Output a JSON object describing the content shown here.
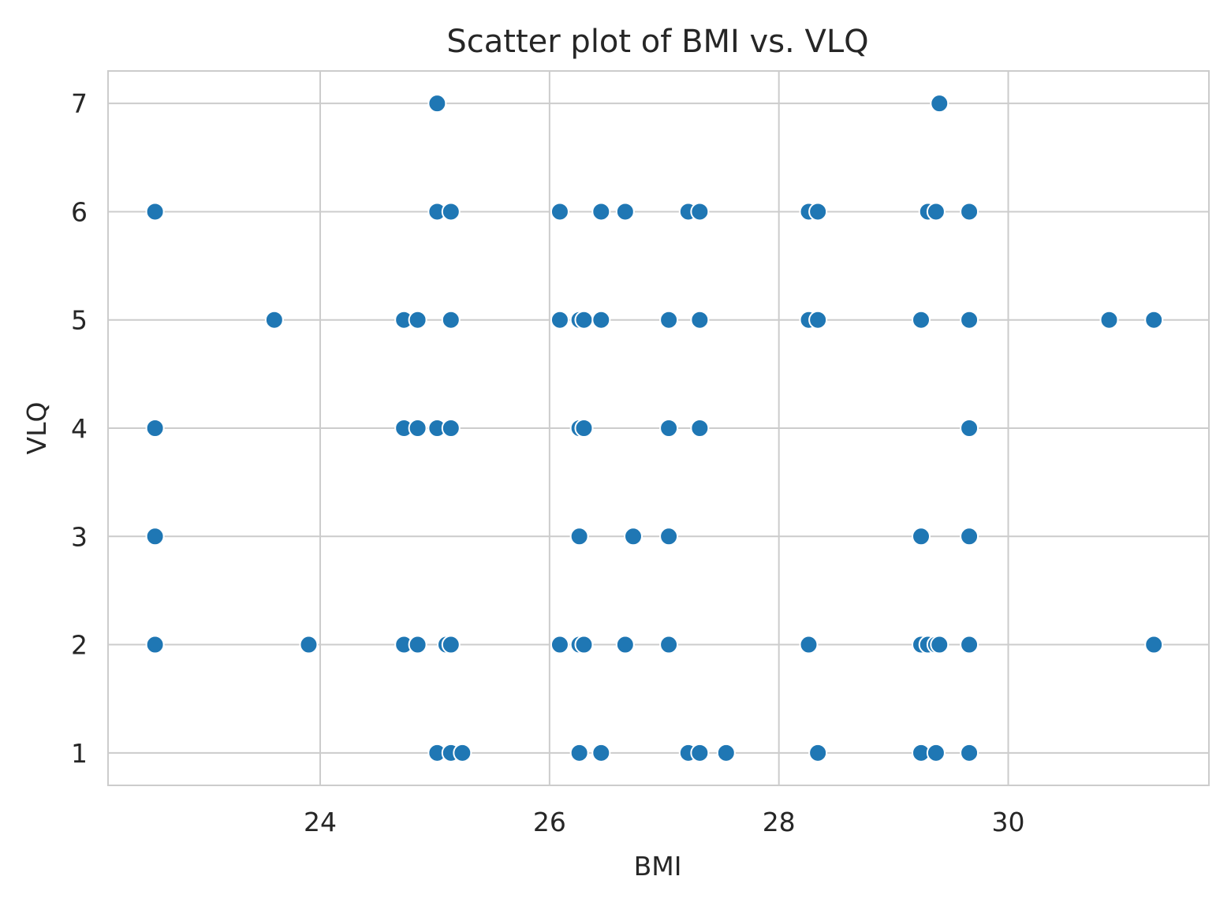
{
  "chart_data": {
    "type": "scatter",
    "title": "Scatter plot of BMI vs. VLQ",
    "xlabel": "BMI",
    "ylabel": "VLQ",
    "xlim": [
      22.15,
      31.75
    ],
    "ylim": [
      0.7,
      7.3
    ],
    "xticks": [
      24,
      26,
      28,
      30
    ],
    "yticks": [
      1,
      2,
      3,
      4,
      5,
      6,
      7
    ],
    "grid": true,
    "marker_color": "#1f77b4",
    "points": [
      {
        "x": 22.56,
        "y": 6
      },
      {
        "x": 22.56,
        "y": 4
      },
      {
        "x": 22.56,
        "y": 3
      },
      {
        "x": 22.56,
        "y": 2
      },
      {
        "x": 23.6,
        "y": 5
      },
      {
        "x": 23.9,
        "y": 2
      },
      {
        "x": 24.73,
        "y": 5
      },
      {
        "x": 24.73,
        "y": 4
      },
      {
        "x": 24.73,
        "y": 2
      },
      {
        "x": 24.85,
        "y": 5
      },
      {
        "x": 24.85,
        "y": 4
      },
      {
        "x": 24.85,
        "y": 2
      },
      {
        "x": 25.02,
        "y": 7
      },
      {
        "x": 25.02,
        "y": 6
      },
      {
        "x": 25.02,
        "y": 4
      },
      {
        "x": 25.02,
        "y": 1
      },
      {
        "x": 25.1,
        "y": 2
      },
      {
        "x": 25.14,
        "y": 6
      },
      {
        "x": 25.14,
        "y": 5
      },
      {
        "x": 25.14,
        "y": 4
      },
      {
        "x": 25.14,
        "y": 2
      },
      {
        "x": 25.14,
        "y": 1
      },
      {
        "x": 25.24,
        "y": 1
      },
      {
        "x": 26.09,
        "y": 6
      },
      {
        "x": 26.09,
        "y": 5
      },
      {
        "x": 26.09,
        "y": 2
      },
      {
        "x": 26.26,
        "y": 5
      },
      {
        "x": 26.26,
        "y": 4
      },
      {
        "x": 26.26,
        "y": 3
      },
      {
        "x": 26.26,
        "y": 2
      },
      {
        "x": 26.26,
        "y": 1
      },
      {
        "x": 26.3,
        "y": 5
      },
      {
        "x": 26.3,
        "y": 4
      },
      {
        "x": 26.3,
        "y": 2
      },
      {
        "x": 26.45,
        "y": 6
      },
      {
        "x": 26.45,
        "y": 5
      },
      {
        "x": 26.45,
        "y": 1
      },
      {
        "x": 26.66,
        "y": 6
      },
      {
        "x": 26.66,
        "y": 2
      },
      {
        "x": 26.73,
        "y": 3
      },
      {
        "x": 27.04,
        "y": 5
      },
      {
        "x": 27.04,
        "y": 4
      },
      {
        "x": 27.04,
        "y": 3
      },
      {
        "x": 27.04,
        "y": 2
      },
      {
        "x": 27.21,
        "y": 6
      },
      {
        "x": 27.21,
        "y": 1
      },
      {
        "x": 27.31,
        "y": 6
      },
      {
        "x": 27.31,
        "y": 5
      },
      {
        "x": 27.31,
        "y": 4
      },
      {
        "x": 27.31,
        "y": 1
      },
      {
        "x": 27.54,
        "y": 1
      },
      {
        "x": 28.26,
        "y": 6
      },
      {
        "x": 28.26,
        "y": 5
      },
      {
        "x": 28.26,
        "y": 2
      },
      {
        "x": 28.34,
        "y": 6
      },
      {
        "x": 28.34,
        "y": 5
      },
      {
        "x": 28.34,
        "y": 1
      },
      {
        "x": 29.24,
        "y": 5
      },
      {
        "x": 29.24,
        "y": 3
      },
      {
        "x": 29.24,
        "y": 2
      },
      {
        "x": 29.24,
        "y": 1
      },
      {
        "x": 29.3,
        "y": 6
      },
      {
        "x": 29.3,
        "y": 2
      },
      {
        "x": 29.37,
        "y": 6
      },
      {
        "x": 29.37,
        "y": 2
      },
      {
        "x": 29.37,
        "y": 1
      },
      {
        "x": 29.4,
        "y": 7
      },
      {
        "x": 29.4,
        "y": 2
      },
      {
        "x": 29.66,
        "y": 6
      },
      {
        "x": 29.66,
        "y": 5
      },
      {
        "x": 29.66,
        "y": 4
      },
      {
        "x": 29.66,
        "y": 3
      },
      {
        "x": 29.66,
        "y": 2
      },
      {
        "x": 29.66,
        "y": 1
      },
      {
        "x": 30.88,
        "y": 5
      },
      {
        "x": 31.27,
        "y": 5
      },
      {
        "x": 31.27,
        "y": 2
      }
    ]
  }
}
